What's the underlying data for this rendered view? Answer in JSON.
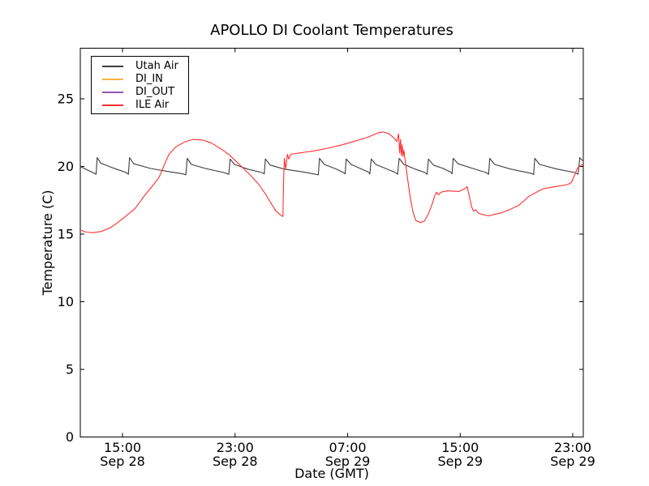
{
  "figure": {
    "background_color": "#ffffff",
    "frame_color": "#000000",
    "text_color": "#000000"
  },
  "chart_data": {
    "type": "line",
    "title": "APOLLO DI Coolant Temperatures",
    "xlabel": "Date (GMT)",
    "ylabel": "Temperature (C)",
    "grid": false,
    "legend_position": "upper left",
    "x_unit": "hours (estimated, 0 = Sep 28 ~12:00 GMT at left edge of axis)",
    "x_range_hours": [
      0,
      35.75
    ],
    "ylim": [
      0,
      28.7
    ],
    "y_ticks": [
      0,
      5,
      10,
      15,
      20,
      25
    ],
    "x_ticks": [
      {
        "hours": 3,
        "time": "15:00",
        "date": "Sep 28"
      },
      {
        "hours": 11,
        "time": "23:00",
        "date": "Sep 28"
      },
      {
        "hours": 19,
        "time": "07:00",
        "date": "Sep 29"
      },
      {
        "hours": 27,
        "time": "15:00",
        "date": "Sep 29"
      },
      {
        "hours": 35,
        "time": "23:00",
        "date": "Sep 29"
      }
    ],
    "series": [
      {
        "name": "Utah Air",
        "color": "#3d3d3d",
        "note": "sawtooth oscillation ~19.4-20.7 C",
        "points": [
          [
            0,
            20.0
          ],
          [
            0.55,
            19.72
          ],
          [
            1.0,
            19.5
          ],
          [
            1.12,
            19.42
          ],
          [
            1.2,
            20.65
          ],
          [
            1.45,
            20.25
          ],
          [
            2.3,
            19.9
          ],
          [
            3.25,
            19.55
          ],
          [
            3.42,
            19.42
          ],
          [
            3.5,
            20.65
          ],
          [
            3.8,
            20.2
          ],
          [
            5.0,
            19.85
          ],
          [
            6.4,
            19.6
          ],
          [
            7.3,
            19.45
          ],
          [
            7.5,
            19.38
          ],
          [
            7.6,
            20.6
          ],
          [
            7.9,
            20.15
          ],
          [
            8.9,
            19.85
          ],
          [
            10.2,
            19.55
          ],
          [
            10.55,
            19.42
          ],
          [
            10.65,
            20.55
          ],
          [
            10.95,
            20.15
          ],
          [
            11.9,
            19.8
          ],
          [
            12.9,
            19.55
          ],
          [
            13.07,
            19.45
          ],
          [
            13.15,
            20.55
          ],
          [
            13.5,
            20.1
          ],
          [
            14.5,
            19.8
          ],
          [
            15.8,
            19.6
          ],
          [
            16.6,
            19.45
          ],
          [
            16.92,
            19.38
          ],
          [
            17.0,
            20.6
          ],
          [
            17.35,
            20.15
          ],
          [
            18.2,
            19.8
          ],
          [
            18.7,
            19.55
          ],
          [
            18.82,
            19.45
          ],
          [
            18.9,
            20.55
          ],
          [
            19.25,
            20.15
          ],
          [
            20.0,
            19.8
          ],
          [
            20.45,
            19.6
          ],
          [
            20.58,
            19.45
          ],
          [
            20.68,
            20.55
          ],
          [
            21.0,
            20.15
          ],
          [
            21.8,
            19.8
          ],
          [
            22.4,
            19.55
          ],
          [
            22.55,
            19.42
          ],
          [
            22.66,
            20.6
          ],
          [
            23.0,
            20.15
          ],
          [
            23.8,
            19.8
          ],
          [
            24.5,
            19.55
          ],
          [
            24.65,
            19.42
          ],
          [
            24.74,
            20.55
          ],
          [
            25.1,
            20.1
          ],
          [
            25.8,
            19.85
          ],
          [
            26.3,
            19.6
          ],
          [
            26.42,
            19.45
          ],
          [
            26.5,
            20.6
          ],
          [
            26.85,
            20.2
          ],
          [
            27.9,
            19.85
          ],
          [
            28.85,
            19.55
          ],
          [
            29.02,
            19.42
          ],
          [
            29.1,
            20.6
          ],
          [
            29.45,
            20.15
          ],
          [
            30.6,
            19.8
          ],
          [
            32.05,
            19.5
          ],
          [
            32.22,
            19.4
          ],
          [
            32.3,
            20.6
          ],
          [
            32.65,
            20.15
          ],
          [
            33.9,
            19.8
          ],
          [
            35.15,
            19.55
          ],
          [
            35.38,
            19.42
          ],
          [
            35.5,
            20.65
          ],
          [
            35.62,
            20.5
          ],
          [
            35.75,
            20.42
          ]
        ]
      },
      {
        "name": "DI_IN",
        "color": "#fcb441",
        "note": "no visible data points in plot area",
        "points": []
      },
      {
        "name": "DI_OUT",
        "color": "#9457b5",
        "note": "no visible data points in plot area",
        "points": []
      },
      {
        "name": "ILE Air",
        "color": "#ff2f2f",
        "note": "varies ~15-22.5 C with sharp jump near Sep 29 03:00 and sharp drop (arrow-like glitch) near Sep 29 11:00",
        "points": [
          [
            0,
            15.3
          ],
          [
            0.4,
            15.15
          ],
          [
            0.9,
            15.1
          ],
          [
            1.5,
            15.2
          ],
          [
            2.1,
            15.45
          ],
          [
            2.6,
            15.8
          ],
          [
            3.2,
            16.3
          ],
          [
            3.9,
            16.9
          ],
          [
            4.6,
            17.9
          ],
          [
            5.2,
            18.65
          ],
          [
            5.6,
            19.2
          ],
          [
            6.0,
            20.2
          ],
          [
            6.3,
            20.9
          ],
          [
            6.8,
            21.45
          ],
          [
            7.4,
            21.8
          ],
          [
            8.0,
            22.0
          ],
          [
            8.7,
            21.95
          ],
          [
            9.3,
            21.75
          ],
          [
            10.0,
            21.3
          ],
          [
            10.6,
            20.85
          ],
          [
            11.1,
            20.35
          ],
          [
            11.6,
            19.85
          ],
          [
            12.1,
            19.35
          ],
          [
            12.7,
            18.65
          ],
          [
            13.2,
            17.9
          ],
          [
            13.6,
            17.2
          ],
          [
            13.9,
            16.7
          ],
          [
            14.25,
            16.4
          ],
          [
            14.4,
            16.3
          ],
          [
            14.45,
            19.0
          ],
          [
            14.5,
            20.6
          ],
          [
            14.6,
            19.8
          ],
          [
            14.72,
            20.9
          ],
          [
            14.82,
            20.55
          ],
          [
            14.95,
            20.9
          ],
          [
            15.6,
            21.0
          ],
          [
            16.6,
            21.15
          ],
          [
            17.6,
            21.35
          ],
          [
            18.6,
            21.6
          ],
          [
            19.6,
            21.9
          ],
          [
            20.4,
            22.15
          ],
          [
            21.2,
            22.5
          ],
          [
            21.5,
            22.55
          ],
          [
            21.9,
            22.45
          ],
          [
            22.3,
            22.1
          ],
          [
            22.5,
            21.85
          ],
          [
            22.62,
            22.4
          ],
          [
            22.7,
            21.0
          ],
          [
            22.76,
            22.0
          ],
          [
            22.82,
            20.8
          ],
          [
            22.88,
            21.6
          ],
          [
            22.94,
            20.75
          ],
          [
            23.0,
            21.2
          ],
          [
            23.06,
            20.7
          ],
          [
            23.25,
            19.2
          ],
          [
            23.45,
            17.7
          ],
          [
            23.65,
            16.6
          ],
          [
            23.85,
            16.0
          ],
          [
            24.15,
            15.85
          ],
          [
            24.45,
            15.95
          ],
          [
            24.75,
            16.5
          ],
          [
            25.0,
            17.2
          ],
          [
            25.2,
            17.85
          ],
          [
            25.32,
            18.1
          ],
          [
            25.45,
            17.9
          ],
          [
            25.65,
            18.1
          ],
          [
            26.1,
            18.2
          ],
          [
            26.9,
            18.15
          ],
          [
            27.3,
            18.35
          ],
          [
            27.5,
            18.5
          ],
          [
            27.65,
            17.8
          ],
          [
            27.82,
            17.0
          ],
          [
            27.95,
            16.7
          ],
          [
            28.1,
            16.8
          ],
          [
            28.3,
            16.55
          ],
          [
            28.6,
            16.45
          ],
          [
            29.0,
            16.35
          ],
          [
            29.4,
            16.45
          ],
          [
            30.0,
            16.6
          ],
          [
            30.6,
            16.85
          ],
          [
            31.2,
            17.15
          ],
          [
            31.9,
            17.8
          ],
          [
            32.6,
            18.2
          ],
          [
            32.9,
            18.35
          ],
          [
            33.4,
            18.45
          ],
          [
            34.0,
            18.55
          ],
          [
            34.6,
            18.65
          ],
          [
            34.9,
            18.8
          ],
          [
            35.15,
            19.4
          ],
          [
            35.35,
            19.9
          ],
          [
            35.55,
            20.05
          ],
          [
            35.75,
            20.2
          ]
        ]
      }
    ]
  }
}
